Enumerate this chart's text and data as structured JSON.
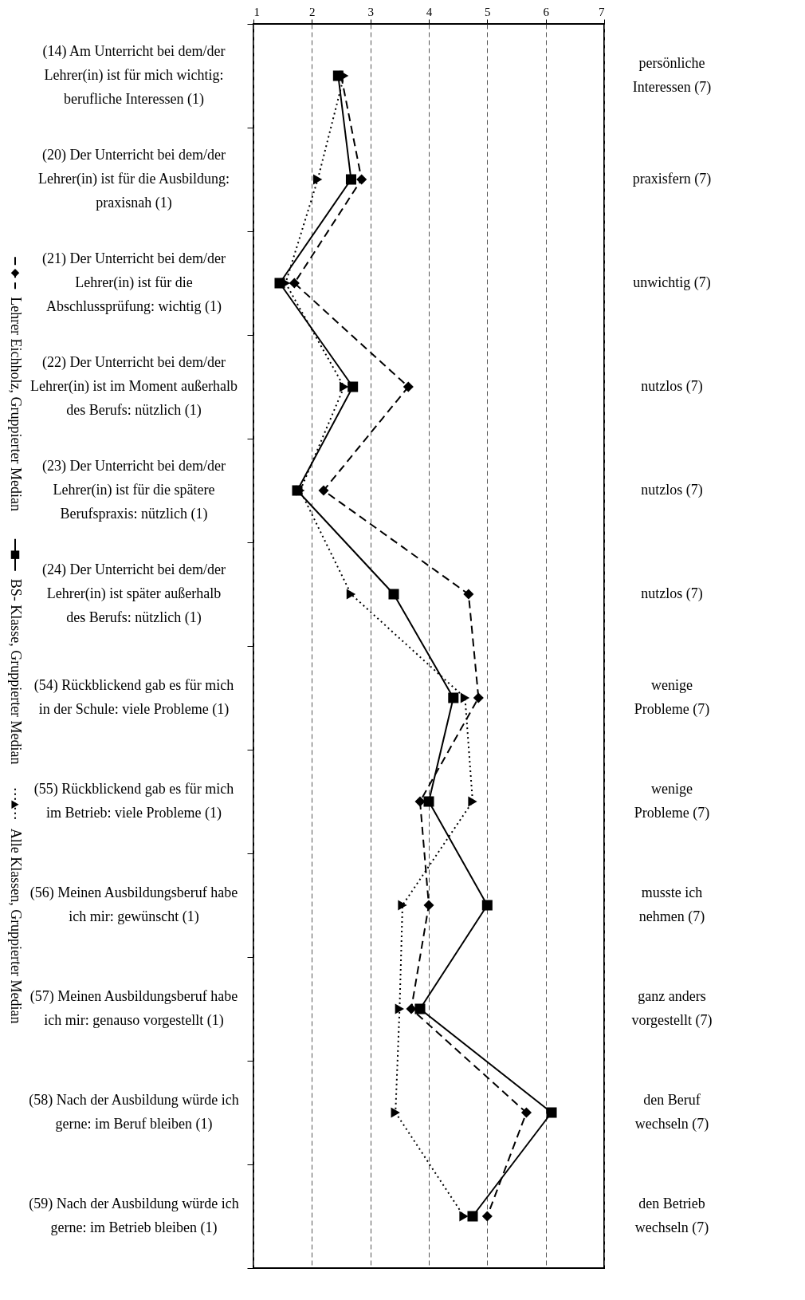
{
  "chart_data": {
    "type": "line",
    "orientation": "horizontal",
    "categories": [
      "(14) Am Unterricht bei dem/der Lehrer(in) ist für mich wichtig: berufliche Interessen (1)",
      "(20) Der Unterricht bei dem/der Lehrer(in) ist für die Ausbildung: praxisnah (1)",
      "(21) Der Unterricht bei dem/der Lehrer(in) ist für die Abschlussprüfung: wichtig (1)",
      "(22) Der Unterricht bei dem/der Lehrer(in) ist im Moment außerhalb des Berufs: nützlich (1)",
      "(23) Der Unterricht bei dem/der Lehrer(in) ist für die spätere Berufspraxis: nützlich (1)",
      "(24) Der Unterricht bei dem/der Lehrer(in) ist später außerhalb des Berufs: nützlich (1)",
      "(54) Rückblickend gab es für mich in der Schule: viele Probleme (1)",
      "(55) Rückblickend gab es für mich im Betrieb: viele Probleme (1)",
      "(56) Meinen Ausbildungsberuf habe ich mir: gewünscht (1)",
      "(57) Meinen Ausbildungsberuf habe ich mir: genauso vorgestellt (1)",
      "(58) Nach der Ausbildung würde ich gerne: im Beruf bleiben (1)",
      "(59) Nach der Ausbildung würde ich gerne: im Betrieb bleiben (1)"
    ],
    "y2_categories": [
      "persönliche Interessen (7)",
      "praxisfern (7)",
      "unwichtig (7)",
      "nutzlos (7)",
      "nutzlos (7)",
      "nutzlos (7)",
      "wenige Probleme (7)",
      "wenige Probleme (7)",
      "musste ich nehmen (7)",
      "ganz anders vorgestellt (7)",
      "den Beruf wechseln (7)",
      "den Betrieb wechseln (7)"
    ],
    "series": [
      {
        "name": "Lehrer Eichholz, Gruppierter Median",
        "color": "#000000",
        "marker": "diamond",
        "line_style": "dashed",
        "values": [
          2.5,
          2.85,
          1.7,
          3.65,
          2.2,
          4.68,
          4.85,
          3.85,
          4.0,
          3.7,
          5.67,
          5.0
        ]
      },
      {
        "name": "BS- Klasse, Gruppierter Median",
        "color": "#000000",
        "marker": "square",
        "line_style": "solid",
        "values": [
          2.45,
          2.67,
          1.45,
          2.7,
          1.75,
          3.4,
          4.42,
          4.0,
          5.0,
          3.85,
          6.1,
          4.75
        ]
      },
      {
        "name": "Alle Klassen, Gruppierter Median",
        "color": "#000000",
        "marker": "triangle",
        "line_style": "dotted",
        "values": [
          2.55,
          2.1,
          1.55,
          2.55,
          1.8,
          2.67,
          4.62,
          4.75,
          3.55,
          3.5,
          3.43,
          4.6
        ]
      }
    ],
    "xlim": [
      1,
      7
    ],
    "xticks": [
      1,
      2,
      3,
      4,
      5,
      6,
      7
    ],
    "grid": "x",
    "legend": "left"
  }
}
